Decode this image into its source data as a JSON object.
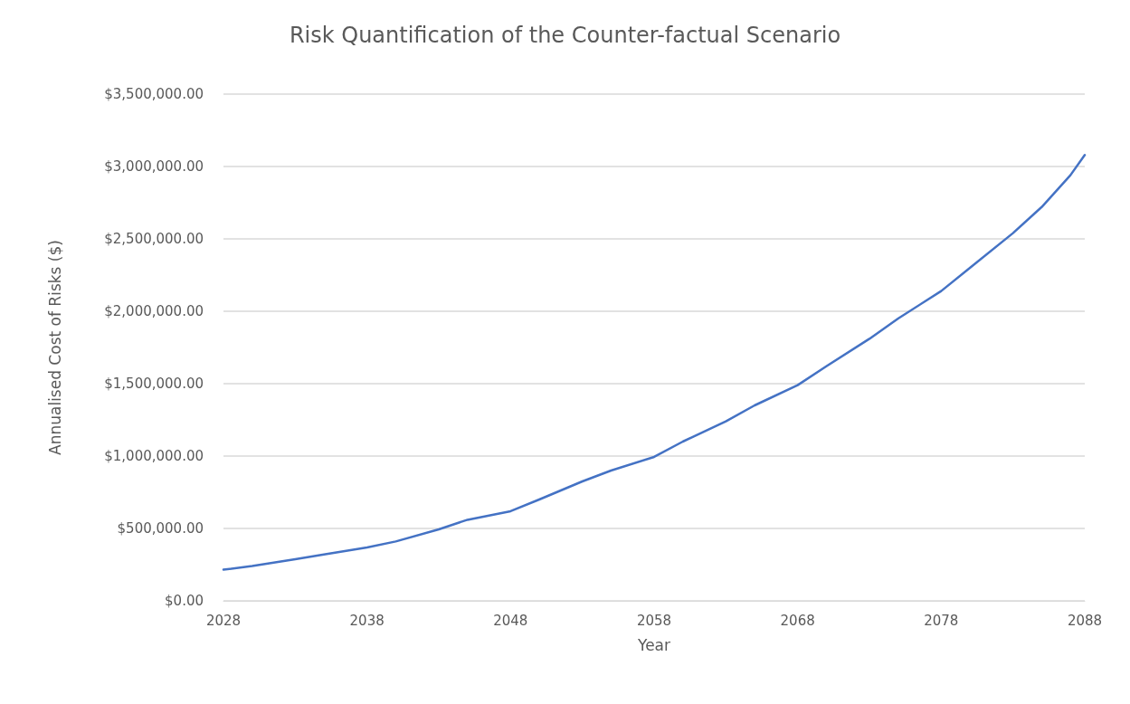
{
  "chart_data": {
    "type": "line",
    "title": "Risk Quantification of the Counter-factual Scenario",
    "xlabel": "Year",
    "ylabel": "Annualised Cost of Risks ($)",
    "x": [
      2028,
      2030,
      2033,
      2035,
      2038,
      2040,
      2043,
      2045,
      2048,
      2050,
      2053,
      2055,
      2058,
      2060,
      2063,
      2065,
      2068,
      2070,
      2073,
      2075,
      2078,
      2080,
      2083,
      2085,
      2087,
      2088
    ],
    "series": [
      {
        "color": "#4472c4",
        "values": [
          215000,
          240000,
          287000,
          320000,
          369000,
          410000,
          494000,
          560000,
          619000,
          700000,
          825000,
          900000,
          994000,
          1100000,
          1240000,
          1350000,
          1490000,
          1620000,
          1810000,
          1950000,
          2140000,
          2300000,
          2540000,
          2720000,
          2940000,
          3080000
        ]
      }
    ],
    "xlim": [
      2028,
      2088
    ],
    "xticks": [
      2028,
      2038,
      2048,
      2058,
      2068,
      2078,
      2088
    ],
    "ylim": [
      0,
      3500000
    ],
    "yticks": [
      {
        "value": 0,
        "label": "$0.00"
      },
      {
        "value": 500000,
        "label": "$500,000.00"
      },
      {
        "value": 1000000,
        "label": "$1,000,000.00"
      },
      {
        "value": 1500000,
        "label": "$1,500,000.00"
      },
      {
        "value": 2000000,
        "label": "$2,000,000.00"
      },
      {
        "value": 2500000,
        "label": "$2,500,000.00"
      },
      {
        "value": 3000000,
        "label": "$3,000,000.00"
      },
      {
        "value": 3500000,
        "label": "$3,500,000.00"
      }
    ],
    "grid": "y",
    "marker": "none",
    "line_style": "solid"
  }
}
